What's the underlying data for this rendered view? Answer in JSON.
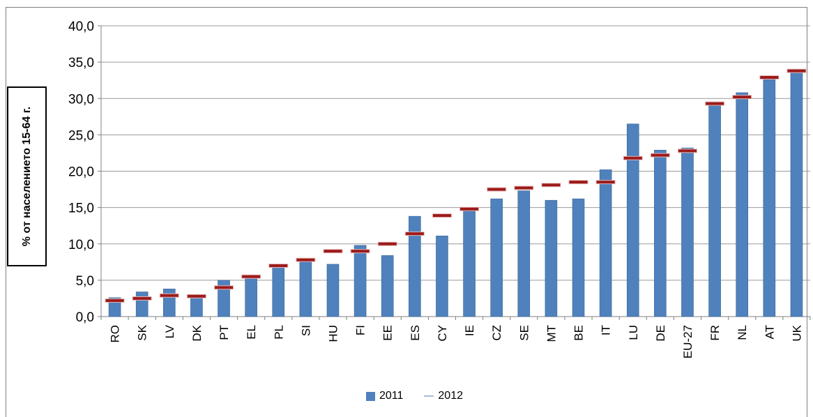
{
  "chart_data": {
    "type": "bar",
    "ylabel": "% от населението 15-64 г.",
    "ylim": [
      0,
      40
    ],
    "yticks": [
      "0,0",
      "5,0",
      "10,0",
      "15,0",
      "20,0",
      "25,0",
      "30,0",
      "35,0",
      "40,0"
    ],
    "grid": true,
    "legend_position": "bottom",
    "categories": [
      "RO",
      "SK",
      "LV",
      "DK",
      "PT",
      "EL",
      "PL",
      "SI",
      "HU",
      "FI",
      "EE",
      "ES",
      "CY",
      "IE",
      "CZ",
      "SE",
      "MT",
      "BE",
      "IT",
      "LU",
      "DE",
      "EU-27",
      "FR",
      "NL",
      "AT",
      "UK"
    ],
    "series": [
      {
        "name": "2011",
        "type": "bar",
        "color": "#4f81bd",
        "values": [
          2.6,
          3.4,
          3.8,
          2.6,
          5.0,
          5.5,
          6.8,
          7.6,
          7.2,
          9.8,
          8.4,
          13.8,
          11.1,
          14.5,
          16.2,
          17.3,
          16.0,
          16.2,
          20.2,
          26.5,
          22.9,
          23.2,
          29.0,
          30.8,
          32.6,
          33.6
        ]
      },
      {
        "name": "2012",
        "type": "marker",
        "color": "#c0504d",
        "values": [
          2.2,
          2.5,
          2.9,
          2.8,
          4.0,
          5.5,
          7.0,
          7.8,
          9.0,
          9.0,
          10.0,
          11.4,
          13.9,
          14.8,
          17.5,
          17.7,
          18.1,
          18.5,
          18.5,
          21.8,
          22.2,
          22.8,
          29.3,
          30.2,
          32.9,
          33.8
        ]
      }
    ]
  }
}
